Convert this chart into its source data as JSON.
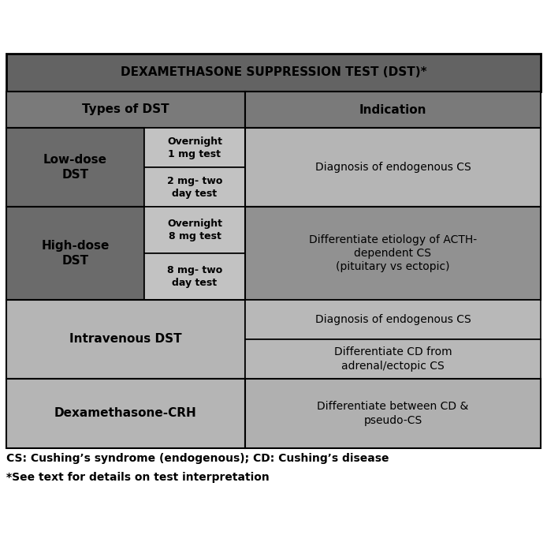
{
  "title": "DEXAMETHASONE SUPPRESSION TEST (DST)*",
  "col1_header": "Types of DST",
  "col2_header": "Indication",
  "footnote1": "CS: Cushing’s syndrome (endogenous); CD: Cushing’s disease",
  "footnote2": "*See text for details on test interpretation",
  "title_bg": "#636363",
  "header_bg": "#7a7a7a",
  "dark_bg": "#6b6b6b",
  "sub_bg": "#c2c2c2",
  "low_right_bg": "#b5b5b5",
  "high_right_bg": "#919191",
  "iv_left_bg": "#b5b5b5",
  "iv_right_bg": "#b8b8b8",
  "dex_left_bg": "#b5b5b5",
  "dex_right_bg": "#b0b0b0",
  "fig_width": 6.94,
  "fig_height": 6.78,
  "dpi": 100
}
